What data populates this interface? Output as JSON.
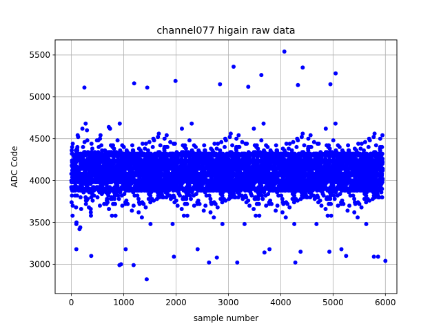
{
  "chart_data": {
    "type": "scatter",
    "title": "channel077 higain raw data",
    "xlabel": "sample number",
    "ylabel": "ADC Code",
    "xlim": [
      -310,
      6220
    ],
    "ylim": [
      2650,
      5680
    ],
    "xticks": [
      0,
      1000,
      2000,
      3000,
      4000,
      5000,
      6000
    ],
    "yticks": [
      3000,
      3500,
      4000,
      4500,
      5000,
      5500
    ],
    "grid": true,
    "marker_color": "#0000ff",
    "series": [
      {
        "n_points": 5950,
        "points_note": "dense noise; bands near 3990 and 4150; outliers listed",
        "outliers": [
          [
            4070,
            5540
          ],
          [
            3100,
            5360
          ],
          [
            4420,
            5350
          ],
          [
            5050,
            5280
          ],
          [
            3630,
            5260
          ],
          [
            1990,
            5190
          ],
          [
            1200,
            5160
          ],
          [
            2840,
            5150
          ],
          [
            4950,
            5150
          ],
          [
            3380,
            5120
          ],
          [
            250,
            5110
          ],
          [
            1450,
            5110
          ],
          [
            4330,
            5140
          ],
          [
            1440,
            2820
          ],
          [
            1190,
            2990
          ],
          [
            920,
            2990
          ],
          [
            950,
            3000
          ],
          [
            2630,
            3020
          ],
          [
            3170,
            3020
          ],
          [
            4280,
            3020
          ],
          [
            5780,
            3090
          ],
          [
            5860,
            3090
          ],
          [
            380,
            3100
          ],
          [
            1960,
            3090
          ],
          [
            2780,
            3080
          ],
          [
            5250,
            3100
          ],
          [
            3690,
            3140
          ],
          [
            4930,
            3150
          ],
          [
            4380,
            3150
          ],
          [
            6000,
            3040
          ]
        ]
      }
    ]
  }
}
